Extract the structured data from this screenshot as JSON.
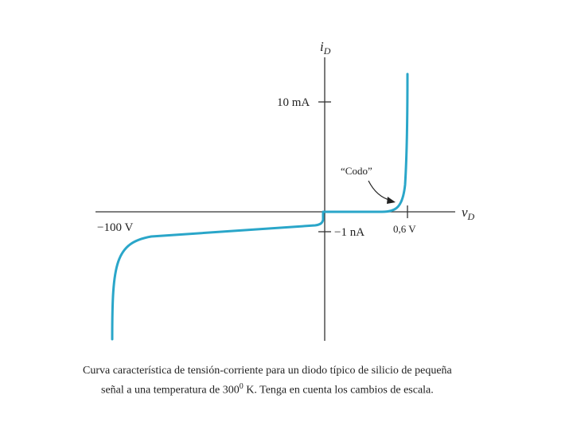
{
  "diagram": {
    "y_axis_label": "i",
    "y_axis_sub": "D",
    "x_axis_label": "v",
    "x_axis_sub": "D",
    "tick_10mA": "10 mA",
    "tick_minus100V": "−100 V",
    "tick_minus1nA": "−1 nA",
    "tick_06V": "0,6 V",
    "knee_label": "“Codo”",
    "curve_color": "#2aa6c9"
  },
  "caption": {
    "line1": "Curva característica de tensión-corriente para un diodo típico de silicio de pequeña",
    "line2_pre": "señal a una temperatura de 300",
    "line2_sup": "0",
    "line2_post": " K. Tenga en cuenta los cambios de escala."
  }
}
